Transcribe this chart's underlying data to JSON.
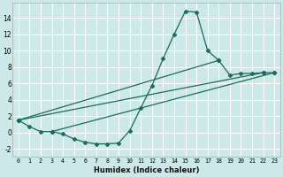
{
  "xlabel": "Humidex (Indice chaleur)",
  "xlim": [
    -0.5,
    23.5
  ],
  "ylim": [
    -3.0,
    15.8
  ],
  "xticks": [
    0,
    1,
    2,
    3,
    4,
    5,
    6,
    7,
    8,
    9,
    10,
    11,
    12,
    13,
    14,
    15,
    16,
    17,
    18,
    19,
    20,
    21,
    22,
    23
  ],
  "yticks": [
    -2,
    0,
    2,
    4,
    6,
    8,
    10,
    12,
    14
  ],
  "bg_color": "#cce8e8",
  "grid_color": "#ffffff",
  "line_color": "#1a6b5a",
  "main_series_x": [
    0,
    1,
    2,
    3,
    4,
    5,
    6,
    7,
    8,
    9,
    10,
    11,
    12,
    13,
    14,
    15,
    16,
    17,
    18,
    19,
    20,
    21,
    22,
    23
  ],
  "main_series_y": [
    1.5,
    0.7,
    0.1,
    0.1,
    -0.2,
    -0.8,
    -1.2,
    -1.4,
    -1.4,
    -1.3,
    0.2,
    3.0,
    5.7,
    9.0,
    12.0,
    14.8,
    14.7,
    10.0,
    8.8,
    7.0,
    7.2,
    7.2,
    7.3,
    7.3
  ],
  "straight_lines": [
    {
      "x": [
        0,
        22
      ],
      "y": [
        1.5,
        7.3
      ]
    },
    {
      "x": [
        0,
        18
      ],
      "y": [
        1.5,
        8.8
      ]
    },
    {
      "x": [
        3,
        23
      ],
      "y": [
        0.1,
        7.3
      ]
    }
  ],
  "marker": "D",
  "marker_size": 2.5,
  "line_width": 0.9
}
